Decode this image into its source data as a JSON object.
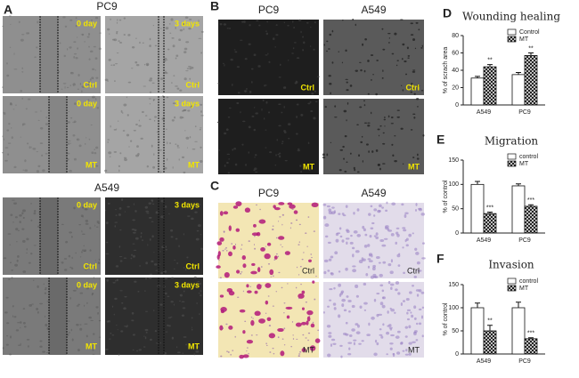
{
  "panel_labels": [
    "A",
    "B",
    "C",
    "D",
    "E",
    "F"
  ],
  "panel_a": {
    "groups": [
      {
        "title": "PC9",
        "images": [
          {
            "time": "0 day",
            "condition": "Ctrl"
          },
          {
            "time": "3 days",
            "condition": "Ctrl"
          },
          {
            "time": "0 day",
            "condition": "MT"
          },
          {
            "time": "3 days",
            "condition": "MT"
          }
        ]
      },
      {
        "title": "A549",
        "images": [
          {
            "time": "0 day",
            "condition": "Ctrl"
          },
          {
            "time": "3 days",
            "condition": "Ctrl"
          },
          {
            "time": "0 day",
            "condition": "MT"
          },
          {
            "time": "3 days",
            "condition": "MT"
          }
        ]
      }
    ]
  },
  "panel_b": {
    "columns": [
      "PC9",
      "A549"
    ],
    "images": [
      "Ctrl",
      "Ctrl",
      "MT",
      "MT"
    ]
  },
  "panel_c": {
    "columns": [
      "PC9",
      "A549"
    ],
    "images": [
      "Ctrl",
      "Ctrl",
      "MT",
      "MT"
    ]
  },
  "chart_data": [
    {
      "type": "bar",
      "title": "Wounding healing",
      "y_label": "% of scrach area",
      "categories": [
        "A549",
        "PC9"
      ],
      "series": [
        {
          "name": "Control",
          "color": "#ffffff",
          "values": [
            31,
            35
          ],
          "errors": [
            2,
            2.5
          ]
        },
        {
          "name": "MT",
          "color": "#ffffff",
          "hatch": true,
          "values": [
            44,
            57
          ],
          "errors": [
            2.5,
            3
          ],
          "sig": [
            "**",
            "**"
          ]
        }
      ],
      "ylim": [
        0,
        80
      ],
      "yticks": [
        0,
        20,
        40,
        60,
        80
      ]
    },
    {
      "type": "bar",
      "title": "Migration",
      "y_label": "% of control",
      "categories": [
        "A549",
        "PC9"
      ],
      "series": [
        {
          "name": "control",
          "color": "#ffffff",
          "values": [
            100,
            97
          ],
          "errors": [
            6,
            4
          ]
        },
        {
          "name": "MT",
          "color": "#ffffff",
          "hatch": true,
          "values": [
            40,
            55
          ],
          "errors": [
            3,
            3
          ],
          "sig": [
            "***",
            "***"
          ]
        }
      ],
      "ylim": [
        0,
        150
      ],
      "yticks": [
        0,
        50,
        100,
        150
      ]
    },
    {
      "type": "bar",
      "title": "Invasion",
      "y_label": "% of control",
      "categories": [
        "A549",
        "PC9"
      ],
      "series": [
        {
          "name": "control",
          "color": "#ffffff",
          "values": [
            100,
            100
          ],
          "errors": [
            10,
            12
          ]
        },
        {
          "name": "MT",
          "color": "#ffffff",
          "hatch": true,
          "values": [
            50,
            33
          ],
          "errors": [
            12,
            2
          ],
          "sig": [
            "**",
            "***"
          ]
        }
      ],
      "ylim": [
        0,
        150
      ],
      "yticks": [
        0,
        50,
        100,
        150
      ]
    }
  ]
}
